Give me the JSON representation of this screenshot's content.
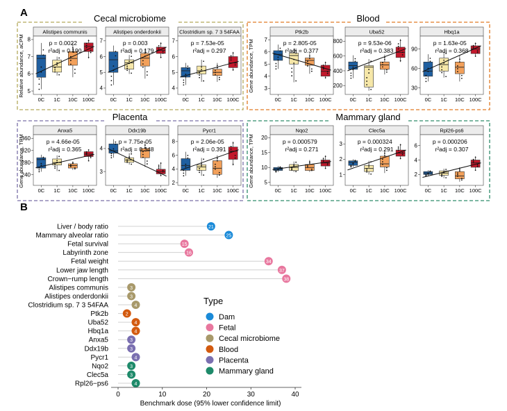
{
  "panel_a_label": "A",
  "panel_b_label": "B",
  "colors": {
    "0C": "#1f5fa0",
    "1C": "#f6e7a8",
    "10C": "#f2a05a",
    "100C": "#c2182b"
  },
  "groups": [
    {
      "title": "Cecal microbiome",
      "border": "#b3a95a",
      "ylabel": "Relative abundance, aCPM"
    },
    {
      "title": "Blood",
      "border": "#e07a24",
      "ylabel": "Gene abundance, TPM"
    },
    {
      "title": "Placenta",
      "border": "#7a6fa8",
      "ylabel": "Gene abundance, TPM"
    },
    {
      "title": "Mammary gland",
      "border": "#2e8c6a",
      "ylabel": "Gene abundance, TPM"
    }
  ],
  "chart_data": [
    {
      "type": "box",
      "panel": "Alistipes communis",
      "group": "Cecal microbiome",
      "categories": [
        "0C",
        "1C",
        "10C",
        "100C"
      ],
      "ylim": [
        4.8,
        8.2
      ],
      "yticks": [
        5,
        6,
        7,
        8
      ],
      "p_text": "p = 0.0022",
      "r2_text": "r²adj = 0.190",
      "medians": [
        6.9,
        6.4,
        6.9,
        7.6
      ],
      "q1": [
        5.8,
        6.1,
        6.5,
        7.3
      ],
      "q3": [
        7.1,
        6.8,
        7.3,
        7.8
      ],
      "whisker_low": [
        5.1,
        5.9,
        5.8,
        6.9
      ],
      "whisker_high": [
        7.8,
        7.0,
        7.8,
        8.0
      ],
      "trend": [
        6.0,
        7.6
      ]
    },
    {
      "type": "box",
      "panel": "Alistipes onderdonkii",
      "group": "Cecal microbiome",
      "categories": [
        "0C",
        "1C",
        "10C",
        "100C"
      ],
      "ylim": [
        3.6,
        7.3
      ],
      "yticks": [
        4,
        5,
        6,
        7
      ],
      "p_text": "p = 0.003",
      "r2_text": "r²adj = 0.179",
      "medians": [
        5.8,
        5.6,
        5.9,
        6.4
      ],
      "q1": [
        5.0,
        5.2,
        5.4,
        6.2
      ],
      "q3": [
        6.3,
        5.8,
        6.2,
        6.6
      ],
      "whisker_low": [
        4.2,
        4.9,
        4.6,
        5.9
      ],
      "whisker_high": [
        6.7,
        6.1,
        6.5,
        6.9
      ],
      "trend": [
        5.0,
        6.6
      ]
    },
    {
      "type": "box",
      "panel": "Clostridium sp. 7 3 54FAA",
      "group": "Cecal microbiome",
      "categories": [
        "0C",
        "1C",
        "10C",
        "100C"
      ],
      "ylim": [
        3.6,
        7.3
      ],
      "yticks": [
        4,
        5,
        6,
        7
      ],
      "p_text": "p = 7.53e-05",
      "r2_text": "r²adj = 0.297",
      "medians": [
        5.1,
        5.1,
        5.0,
        5.6
      ],
      "q1": [
        4.7,
        4.9,
        4.8,
        5.3
      ],
      "q3": [
        5.3,
        5.4,
        5.2,
        6.0
      ],
      "whisker_low": [
        4.2,
        4.4,
        4.4,
        5.1
      ],
      "whisker_high": [
        5.6,
        5.8,
        5.6,
        6.3
      ],
      "trend": [
        4.7,
        5.7
      ]
    },
    {
      "type": "box",
      "panel": "Ptk2b",
      "group": "Blood",
      "categories": [
        "0C",
        "1C",
        "10C",
        "100C"
      ],
      "ylim": [
        2.5,
        7.3
      ],
      "yticks": [
        3,
        4,
        5,
        6,
        7
      ],
      "p_text": "p = 2.805-05",
      "r2_text": "r²adj = 0.377",
      "medians": [
        5.8,
        5.7,
        5.3,
        4.4
      ],
      "q1": [
        5.3,
        5.0,
        4.9,
        4.0
      ],
      "q3": [
        6.1,
        5.9,
        5.5,
        4.9
      ],
      "whisker_low": [
        4.6,
        3.5,
        4.2,
        3.8
      ],
      "whisker_high": [
        6.6,
        6.3,
        5.9,
        5.2
      ],
      "trend": [
        5.9,
        4.5
      ]
    },
    {
      "type": "box",
      "panel": "Uba52",
      "group": "Blood",
      "categories": [
        "0C",
        "1C",
        "10C",
        "100C"
      ],
      "ylim": [
        80,
        870
      ],
      "yticks": [
        200,
        400,
        600,
        800
      ],
      "p_text": "p = 9.53e-06",
      "r2_text": "r²adj = 0.383",
      "medians": [
        470,
        450,
        480,
        650
      ],
      "q1": [
        420,
        180,
        420,
        580
      ],
      "q3": [
        520,
        470,
        520,
        720
      ],
      "whisker_low": [
        300,
        130,
        350,
        520
      ],
      "whisker_high": [
        610,
        560,
        620,
        830
      ],
      "trend": [
        400,
        700
      ]
    },
    {
      "type": "box",
      "panel": "Hbq1a",
      "group": "Blood",
      "categories": [
        "0C",
        "1C",
        "10C",
        "100C"
      ],
      "ylim": [
        20,
        110
      ],
      "yticks": [
        30,
        60,
        90
      ],
      "p_text": "p = 1.63e-05",
      "r2_text": "r²adj = 0.368",
      "medians": [
        56,
        66,
        62,
        90
      ],
      "q1": [
        48,
        56,
        52,
        83
      ],
      "q3": [
        70,
        76,
        70,
        95
      ],
      "whisker_low": [
        40,
        46,
        40,
        78
      ],
      "whisker_high": [
        82,
        86,
        80,
        100
      ],
      "trend": [
        55,
        95
      ]
    },
    {
      "type": "box",
      "panel": "Anxa5",
      "group": "Placenta",
      "categories": [
        "0C",
        "1C",
        "10C",
        "100C"
      ],
      "ylim": [
        205,
        372
      ],
      "yticks": [
        240,
        280,
        320,
        360
      ],
      "p_text": "p = 4.66e-05",
      "r2_text": "r²adj = 0.365",
      "medians": [
        290,
        280,
        270,
        308
      ],
      "q1": [
        262,
        272,
        262,
        300
      ],
      "q3": [
        296,
        292,
        276,
        316
      ],
      "whisker_low": [
        250,
        252,
        256,
        284
      ],
      "whisker_high": [
        306,
        304,
        284,
        324
      ],
      "trend": [
        263,
        307
      ]
    },
    {
      "type": "box",
      "panel": "Ddx19b",
      "group": "Placenta",
      "categories": [
        "0C",
        "1C",
        "10C",
        "100C"
      ],
      "ylim": [
        2.4,
        4.6
      ],
      "yticks": [
        3,
        4
      ],
      "p_text": "p = 7.75e-05",
      "r2_text": "r²adj = 0.348",
      "medians": [
        3.9,
        3.5,
        3.9,
        3.0
      ],
      "q1": [
        3.8,
        3.4,
        3.6,
        2.9
      ],
      "q3": [
        4.2,
        3.6,
        4.0,
        3.1
      ],
      "whisker_low": [
        3.6,
        3.3,
        3.2,
        2.8
      ],
      "whisker_high": [
        4.4,
        3.8,
        4.3,
        3.4
      ],
      "trend": [
        4.0,
        2.8
      ]
    },
    {
      "type": "box",
      "panel": "Pycr1",
      "group": "Placenta",
      "categories": [
        "0C",
        "1C",
        "10C",
        "100C"
      ],
      "ylim": [
        1.6,
        9.0
      ],
      "yticks": [
        2,
        4,
        6,
        8
      ],
      "p_text": "p = 2.06e-05",
      "r2_text": "r²adj = 0.391",
      "medians": [
        4.5,
        4.3,
        4.1,
        6.6
      ],
      "q1": [
        3.8,
        3.8,
        3.2,
        5.4
      ],
      "q3": [
        5.5,
        4.6,
        5.2,
        7.2
      ],
      "whisker_low": [
        3.0,
        3.0,
        2.7,
        4.5
      ],
      "whisker_high": [
        6.5,
        5.6,
        6.0,
        8.0
      ],
      "trend": [
        3.8,
        6.8
      ]
    },
    {
      "type": "box",
      "panel": "Nqo2",
      "group": "Mammary gland",
      "categories": [
        "0C",
        "1C",
        "10C",
        "100C"
      ],
      "ylim": [
        4,
        21
      ],
      "yticks": [
        5,
        10,
        15,
        20
      ],
      "p_text": "p = 0.000579",
      "r2_text": "r²adj = 0.271",
      "medians": [
        9.5,
        10.0,
        10.0,
        11.5
      ],
      "q1": [
        9.0,
        9.0,
        9.0,
        10.5
      ],
      "q3": [
        10.0,
        11.0,
        11.0,
        12.5
      ],
      "whisker_low": [
        8.5,
        8.5,
        8.5,
        9.5
      ],
      "whisker_high": [
        10.5,
        12.0,
        12.5,
        14.0
      ],
      "trend": [
        9.3,
        12.0
      ]
    },
    {
      "type": "box",
      "panel": "Clec5a",
      "group": "Mammary gland",
      "categories": [
        "0C",
        "1C",
        "10C",
        "100C"
      ],
      "ylim": [
        0.3,
        3.6
      ],
      "yticks": [
        1,
        2,
        3
      ],
      "p_text": "p = 0.000324",
      "r2_text": "r²adj = 0.291",
      "medians": [
        1.8,
        1.4,
        1.7,
        2.4
      ],
      "q1": [
        1.6,
        1.2,
        1.5,
        2.2
      ],
      "q3": [
        1.9,
        1.6,
        2.2,
        2.6
      ],
      "whisker_low": [
        1.5,
        1.0,
        1.1,
        2.0
      ],
      "whisker_high": [
        2.0,
        1.9,
        2.6,
        3.0
      ],
      "trend": [
        1.3,
        2.6
      ]
    },
    {
      "type": "box",
      "panel": "Rpl26-ps6",
      "group": "Mammary gland",
      "categories": [
        "0C",
        "1C",
        "10C",
        "100C"
      ],
      "ylim": [
        0.5,
        7.5
      ],
      "yticks": [
        2,
        4,
        6
      ],
      "p_text": "p = 0.000206",
      "r2_text": "r²adj = 0.307",
      "medians": [
        2.2,
        2.2,
        1.8,
        3.6
      ],
      "q1": [
        2.0,
        1.9,
        1.4,
        3.0
      ],
      "q3": [
        2.4,
        2.5,
        2.4,
        4.0
      ],
      "whisker_low": [
        1.8,
        1.5,
        1.0,
        2.5
      ],
      "whisker_high": [
        2.6,
        2.8,
        3.0,
        4.5
      ],
      "trend": [
        1.6,
        3.6
      ]
    },
    {
      "type": "lollipop",
      "panel": "B",
      "xlabel": "Benchmark dose (95% lower confidence limit)",
      "xlim": [
        0,
        40
      ],
      "xticks": [
        0,
        10,
        20,
        30,
        40
      ],
      "items": [
        {
          "label": "Liver / body ratio",
          "value": 21,
          "type": "Dam"
        },
        {
          "label": "Mammary alveolar ratio",
          "value": 25,
          "type": "Dam"
        },
        {
          "label": "Fetal survival",
          "value": 15,
          "type": "Fetal"
        },
        {
          "label": "Labyrinth zone",
          "value": 16,
          "type": "Fetal"
        },
        {
          "label": "Fetal weight",
          "value": 34,
          "type": "Fetal"
        },
        {
          "label": "Lower jaw length",
          "value": 37,
          "type": "Fetal"
        },
        {
          "label": "Crown−rump length",
          "value": 38,
          "type": "Fetal"
        },
        {
          "label": "Alistipes communis",
          "value": 3,
          "type": "Cecal microbiome"
        },
        {
          "label": "Alistipes onderdonkii",
          "value": 3,
          "type": "Cecal microbiome"
        },
        {
          "label": "Clostridium sp. 7 3 54FAA",
          "value": 4,
          "type": "Cecal microbiome"
        },
        {
          "label": "Ptk2b",
          "value": 2,
          "type": "Blood"
        },
        {
          "label": "Uba52",
          "value": 4,
          "type": "Blood"
        },
        {
          "label": "Hbq1a",
          "value": 4,
          "type": "Blood"
        },
        {
          "label": "Anxa5",
          "value": 3,
          "type": "Placenta"
        },
        {
          "label": "Ddx19b",
          "value": 3,
          "type": "Placenta"
        },
        {
          "label": "Pycr1",
          "value": 4,
          "type": "Placenta"
        },
        {
          "label": "Nqo2",
          "value": 3,
          "type": "Mammary gland"
        },
        {
          "label": "Clec5a",
          "value": 3,
          "type": "Mammary gland"
        },
        {
          "label": "Rpl26−ps6",
          "value": 4,
          "type": "Mammary gland"
        }
      ],
      "legend_title": "Type",
      "legend": [
        {
          "name": "Dam",
          "color": "#1a8ad8"
        },
        {
          "name": "Fetal",
          "color": "#e8779e"
        },
        {
          "name": "Cecal microbiome",
          "color": "#a8996a"
        },
        {
          "name": "Blood",
          "color": "#d35a0f"
        },
        {
          "name": "Placenta",
          "color": "#7a6fb0"
        },
        {
          "name": "Mammary gland",
          "color": "#1e8a6a"
        }
      ]
    }
  ]
}
